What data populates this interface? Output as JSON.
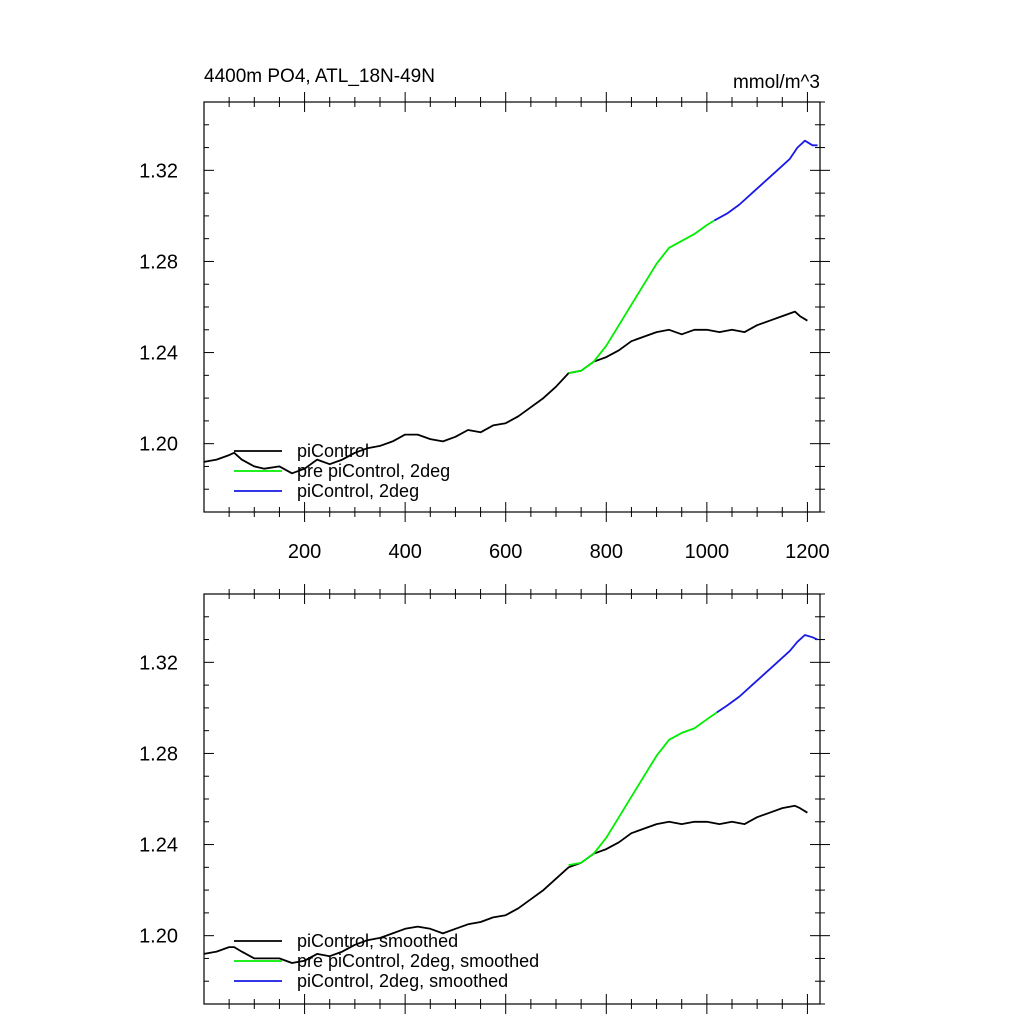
{
  "chart_data": [
    {
      "type": "line",
      "title": "4400m PO4, ATL_18N-49N",
      "units": "mmol/m^3",
      "xlabel": "",
      "ylabel": "",
      "xlim": [
        0,
        1225
      ],
      "ylim": [
        1.17,
        1.35
      ],
      "x_ticks": [
        200,
        400,
        600,
        800,
        1000,
        1200
      ],
      "x_tick_labels": [
        "200",
        "400",
        "600",
        "800",
        "1000",
        "1200"
      ],
      "y_ticks": [
        1.2,
        1.24,
        1.28,
        1.32
      ],
      "y_tick_labels": [
        "1.20",
        "1.24",
        "1.28",
        "1.32"
      ],
      "grid": false,
      "legend_position": "bottom-left",
      "series": [
        {
          "name": "piControl",
          "color": "#000000",
          "x": [
            0,
            25,
            50,
            60,
            75,
            100,
            120,
            150,
            175,
            200,
            225,
            250,
            275,
            300,
            325,
            350,
            375,
            400,
            425,
            450,
            475,
            500,
            525,
            550,
            575,
            600,
            625,
            650,
            675,
            700,
            725,
            750,
            775,
            800,
            825,
            850,
            875,
            900,
            925,
            950,
            975,
            1000,
            1025,
            1050,
            1075,
            1100,
            1125,
            1150,
            1175,
            1185,
            1200
          ],
          "y": [
            1.192,
            1.193,
            1.195,
            1.196,
            1.193,
            1.19,
            1.189,
            1.19,
            1.187,
            1.189,
            1.193,
            1.191,
            1.193,
            1.196,
            1.198,
            1.199,
            1.201,
            1.204,
            1.204,
            1.202,
            1.201,
            1.203,
            1.206,
            1.205,
            1.208,
            1.209,
            1.212,
            1.216,
            1.22,
            1.225,
            1.231,
            1.232,
            1.236,
            1.238,
            1.241,
            1.245,
            1.247,
            1.249,
            1.25,
            1.248,
            1.25,
            1.25,
            1.249,
            1.25,
            1.249,
            1.252,
            1.254,
            1.256,
            1.258,
            1.256,
            1.254
          ]
        },
        {
          "name": "pre piControl, 2deg",
          "color": "#00ee00",
          "x": [
            725,
            750,
            775,
            800,
            825,
            850,
            875,
            900,
            925,
            950,
            975,
            1000,
            1015
          ],
          "y": [
            1.231,
            1.232,
            1.236,
            1.243,
            1.252,
            1.261,
            1.27,
            1.279,
            1.286,
            1.289,
            1.292,
            1.296,
            1.298
          ]
        },
        {
          "name": "piControl, 2deg",
          "color": "#1a1ae6",
          "x": [
            1015,
            1040,
            1065,
            1090,
            1115,
            1140,
            1165,
            1180,
            1195,
            1210,
            1220
          ],
          "y": [
            1.298,
            1.301,
            1.305,
            1.31,
            1.315,
            1.32,
            1.325,
            1.33,
            1.333,
            1.331,
            1.331
          ]
        }
      ]
    },
    {
      "type": "line",
      "title": "",
      "xlabel": "",
      "ylabel": "",
      "xlim": [
        0,
        1225
      ],
      "ylim": [
        1.17,
        1.35
      ],
      "x_ticks": [
        200,
        400,
        600,
        800,
        1000,
        1200
      ],
      "y_ticks": [
        1.2,
        1.24,
        1.28,
        1.32
      ],
      "y_tick_labels": [
        "1.20",
        "1.24",
        "1.28",
        "1.32"
      ],
      "grid": false,
      "legend_position": "bottom-left",
      "series": [
        {
          "name": "piControl, smoothed",
          "color": "#000000",
          "x": [
            0,
            25,
            50,
            60,
            75,
            100,
            120,
            150,
            175,
            200,
            225,
            250,
            275,
            300,
            325,
            350,
            375,
            400,
            425,
            450,
            475,
            500,
            525,
            550,
            575,
            600,
            625,
            650,
            675,
            700,
            725,
            750,
            775,
            800,
            825,
            850,
            875,
            900,
            925,
            950,
            975,
            1000,
            1025,
            1050,
            1075,
            1100,
            1125,
            1150,
            1175,
            1185,
            1200
          ],
          "y": [
            1.192,
            1.193,
            1.195,
            1.195,
            1.193,
            1.19,
            1.19,
            1.19,
            1.188,
            1.189,
            1.192,
            1.191,
            1.193,
            1.196,
            1.198,
            1.199,
            1.201,
            1.203,
            1.204,
            1.203,
            1.201,
            1.203,
            1.205,
            1.206,
            1.208,
            1.209,
            1.212,
            1.216,
            1.22,
            1.225,
            1.23,
            1.232,
            1.236,
            1.238,
            1.241,
            1.245,
            1.247,
            1.249,
            1.25,
            1.249,
            1.25,
            1.25,
            1.249,
            1.25,
            1.249,
            1.252,
            1.254,
            1.256,
            1.257,
            1.256,
            1.254
          ]
        },
        {
          "name": "pre piControl, 2deg, smoothed",
          "color": "#00ee00",
          "x": [
            725,
            750,
            775,
            800,
            825,
            850,
            875,
            900,
            925,
            950,
            975,
            1000,
            1020
          ],
          "y": [
            1.231,
            1.232,
            1.236,
            1.243,
            1.252,
            1.261,
            1.27,
            1.279,
            1.286,
            1.289,
            1.291,
            1.295,
            1.298
          ]
        },
        {
          "name": "piControl, 2deg, smoothed",
          "color": "#1a1ae6",
          "x": [
            1020,
            1040,
            1065,
            1090,
            1115,
            1140,
            1165,
            1180,
            1195,
            1210,
            1220
          ],
          "y": [
            1.298,
            1.301,
            1.305,
            1.31,
            1.315,
            1.32,
            1.325,
            1.329,
            1.332,
            1.331,
            1.33
          ]
        }
      ]
    }
  ]
}
